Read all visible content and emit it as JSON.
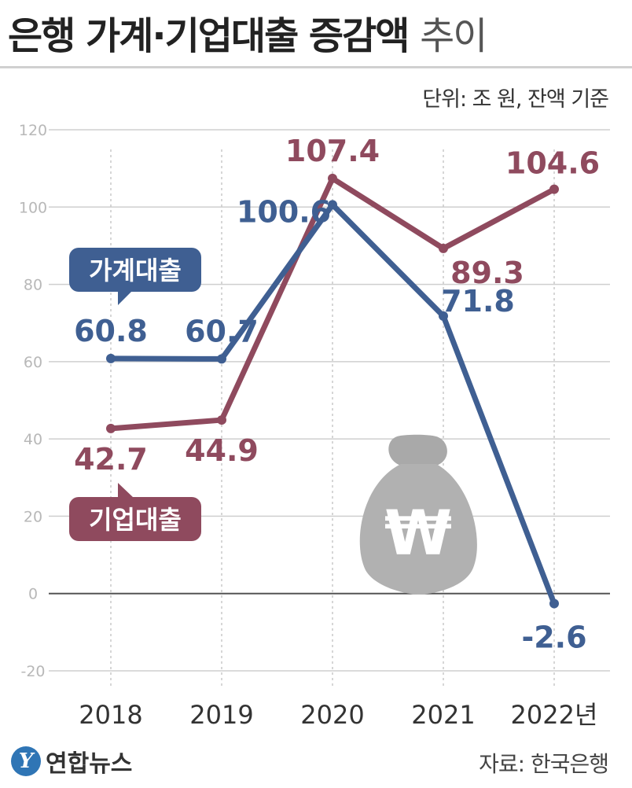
{
  "title": {
    "main": "은행 가계·기업대출 증감액",
    "suffix": "추이"
  },
  "unit_note": "단위: 조 원, 잔액 기준",
  "chart_data": {
    "type": "line",
    "x": [
      "2018",
      "2019",
      "2020",
      "2021",
      "2022년"
    ],
    "yticks": [
      "120",
      "100",
      "80",
      "60",
      "40",
      "20",
      "0",
      "-20"
    ],
    "ylim": [
      -20,
      120
    ],
    "grid": true,
    "series": [
      {
        "name": "가계대출",
        "color": "#3f5f92",
        "values": [
          60.8,
          60.7,
          100.6,
          71.8,
          -2.6
        ],
        "labels": [
          "60.8",
          "60.7",
          "100.6",
          "71.8",
          "-2.6"
        ]
      },
      {
        "name": "기업대출",
        "color": "#8f4a5e",
        "values": [
          42.7,
          44.9,
          107.4,
          89.3,
          104.6
        ],
        "labels": [
          "42.7",
          "44.9",
          "107.4",
          "89.3",
          "104.6"
        ]
      }
    ]
  },
  "illustration": {
    "icon": "money-bag-icon",
    "symbol": "₩"
  },
  "footer": {
    "brand": "연합뉴스",
    "brand_mark": "Y",
    "source": "자료: 한국은행"
  }
}
